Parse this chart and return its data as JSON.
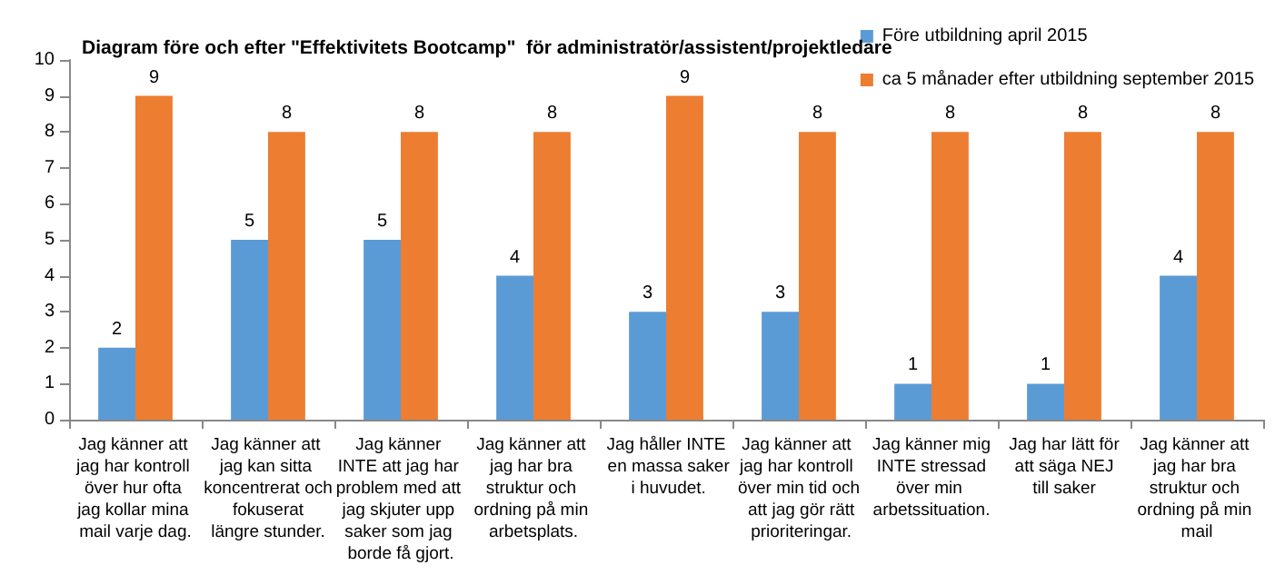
{
  "chart_data": {
    "type": "bar",
    "title": "Diagram före och efter \"Effektivitets Bootcamp\"  för administratör/assistent/projektledare",
    "categories": [
      "Jag känner att jag har kontroll över hur ofta jag kollar mina mail varje dag.",
      "Jag känner att jag kan sitta koncentrerat och fokuserat längre stunder.",
      "Jag känner INTE att jag har problem med att jag skjuter upp saker som jag borde få gjort.",
      "Jag känner att jag har bra struktur och ordning på min arbetsplats.",
      "Jag håller INTE en massa saker i huvudet.",
      "Jag känner att jag har kontroll över min tid och att jag gör rätt prioriteringar.",
      "Jag känner mig INTE stressad över min arbetssituation.",
      "Jag har lätt för att säga NEJ till saker",
      "Jag känner att jag har bra struktur och ordning på min mail"
    ],
    "series": [
      {
        "name": "Före utbildning april 2015",
        "color": "#5b9bd5",
        "values": [
          2,
          5,
          5,
          4,
          3,
          3,
          1,
          1,
          4
        ]
      },
      {
        "name": "ca 5 månader efter utbildning september 2015",
        "color": "#ed7d31",
        "values": [
          9,
          8,
          8,
          8,
          9,
          8,
          8,
          8,
          8
        ]
      }
    ],
    "ylim": [
      0,
      10
    ],
    "yticks": [
      0,
      1,
      2,
      3,
      4,
      5,
      6,
      7,
      8,
      9,
      10
    ],
    "grid": false,
    "legend": "top right",
    "data_labels": true
  }
}
